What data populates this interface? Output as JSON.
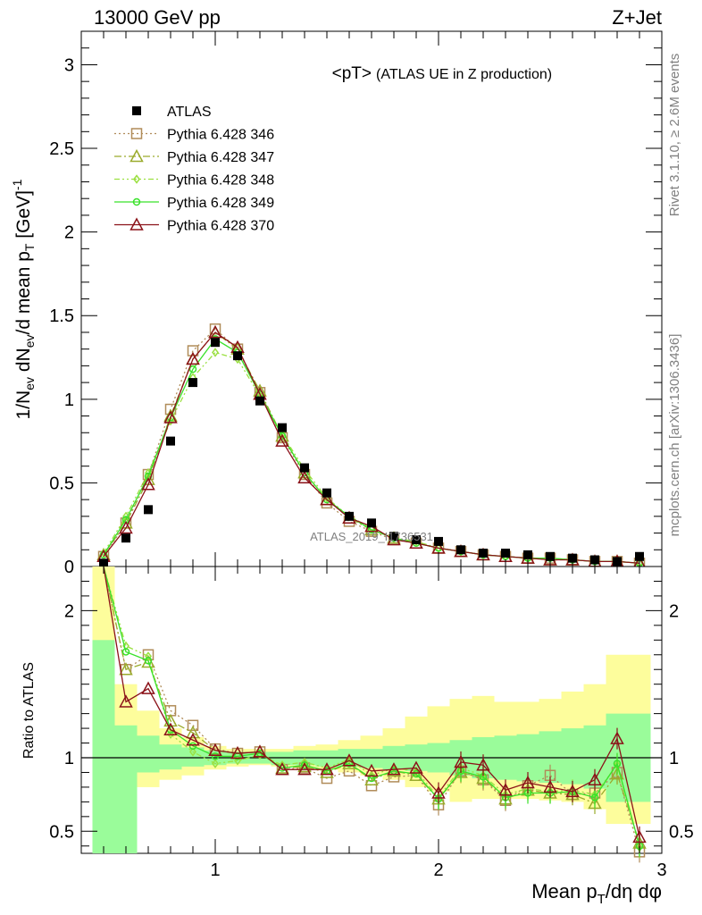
{
  "header": {
    "energy_label": "13000 GeV pp",
    "process_label": "Z+Jet",
    "plot_title": "<pT>",
    "plot_subtitle": "(ATLAS UE in Z production)",
    "rivet_label": "Rivet 3.1.10, ≥ 2.6M events",
    "mcplots_label": "mcplots.cern.ch [arXiv:1306.3436]",
    "watermark": "ATLAS_2019_I1736531"
  },
  "axes": {
    "y_main_label": "1/N_ev dN_ev/d mean p_T [GeV]^-1",
    "y_ratio_label": "Ratio to ATLAS",
    "x_label": "Mean p_T/dη dφ"
  },
  "colors": {
    "atlas": "#000000",
    "p346": "#b08c59",
    "p347": "#9aab2c",
    "p348": "#9be041",
    "p349": "#39e22a",
    "p370": "#8b1219",
    "band_inner": "#9afc9a",
    "band_outer": "#fdfd9c"
  },
  "chart_data": {
    "type": "scatter",
    "x_range": [
      0.4,
      3.0
    ],
    "main_ylim": [
      0,
      3.2
    ],
    "ratio_ylim": [
      0.35,
      2.3
    ],
    "x_ticks": [
      1,
      2,
      3
    ],
    "main_y_ticks": [
      0,
      0.5,
      1,
      1.5,
      2,
      2.5,
      3
    ],
    "ratio_y_ticks": [
      0.5,
      1,
      2
    ],
    "x": [
      0.5,
      0.6,
      0.7,
      0.8,
      0.9,
      1.0,
      1.1,
      1.2,
      1.3,
      1.4,
      1.5,
      1.6,
      1.7,
      1.8,
      1.9,
      2.0,
      2.1,
      2.2,
      2.3,
      2.4,
      2.5,
      2.6,
      2.7,
      2.8,
      2.9
    ],
    "legend": [
      {
        "key": "atlas",
        "label": "ATLAS"
      },
      {
        "key": "p346",
        "label": "Pythia 6.428 346"
      },
      {
        "key": "p347",
        "label": "Pythia 6.428 347"
      },
      {
        "key": "p348",
        "label": "Pythia 6.428 348"
      },
      {
        "key": "p349",
        "label": "Pythia 6.428 349"
      },
      {
        "key": "p370",
        "label": "Pythia 6.428 370"
      }
    ],
    "atlas_values": [
      0.02,
      0.17,
      0.34,
      0.75,
      1.1,
      1.34,
      1.26,
      0.99,
      0.83,
      0.59,
      0.44,
      0.3,
      0.26,
      0.18,
      0.16,
      0.15,
      0.1,
      0.08,
      0.08,
      0.07,
      0.06,
      0.05,
      0.04,
      0.03,
      0.06
    ],
    "series": [
      {
        "key": "p346",
        "marker": "square",
        "dash": "2,3",
        "values": [
          0.06,
          0.26,
          0.55,
          0.94,
          1.29,
          1.42,
          1.3,
          1.04,
          0.77,
          0.55,
          0.38,
          0.27,
          0.21,
          0.16,
          0.14,
          0.11,
          0.09,
          0.07,
          0.06,
          0.05,
          0.05,
          0.04,
          0.03,
          0.03,
          0.02
        ],
        "ratio": [
          3.0,
          1.6,
          1.7,
          1.32,
          1.22,
          1.06,
          1.03,
          1.04,
          0.92,
          0.93,
          0.86,
          0.91,
          0.81,
          0.87,
          0.88,
          0.68,
          0.91,
          0.85,
          0.71,
          0.81,
          0.88,
          0.75,
          0.76,
          0.9,
          0.36
        ]
      },
      {
        "key": "p347",
        "marker": "triangle",
        "dash": "8,3,2,3",
        "values": [
          0.07,
          0.26,
          0.52,
          0.9,
          1.24,
          1.4,
          1.3,
          1.05,
          0.78,
          0.56,
          0.4,
          0.29,
          0.22,
          0.17,
          0.14,
          0.11,
          0.09,
          0.07,
          0.06,
          0.05,
          0.04,
          0.04,
          0.03,
          0.03,
          0.02
        ],
        "ratio": [
          3.0,
          1.6,
          1.65,
          1.25,
          1.17,
          1.05,
          1.03,
          1.04,
          0.93,
          0.94,
          0.9,
          0.96,
          0.85,
          0.91,
          0.88,
          0.72,
          0.9,
          0.86,
          0.72,
          0.78,
          0.76,
          0.75,
          0.69,
          0.89,
          0.42
        ]
      },
      {
        "key": "p348",
        "marker": "diamond",
        "dash": "6,3,2,3,2,3",
        "values": [
          0.08,
          0.3,
          0.56,
          0.87,
          1.13,
          1.28,
          1.24,
          1.02,
          0.79,
          0.58,
          0.41,
          0.3,
          0.23,
          0.17,
          0.15,
          0.11,
          0.09,
          0.07,
          0.06,
          0.05,
          0.05,
          0.04,
          0.03,
          0.03,
          0.02
        ],
        "ratio": [
          3.0,
          1.76,
          1.69,
          1.16,
          1.04,
          0.96,
          0.98,
          1.02,
          0.95,
          0.97,
          0.93,
          0.99,
          0.88,
          0.93,
          0.91,
          0.73,
          0.93,
          0.88,
          0.75,
          0.79,
          0.77,
          0.78,
          0.75,
          0.95,
          0.39
        ]
      },
      {
        "key": "p349",
        "marker": "circle",
        "dash": "",
        "values": [
          0.07,
          0.28,
          0.54,
          0.89,
          1.18,
          1.36,
          1.28,
          1.03,
          0.78,
          0.56,
          0.4,
          0.3,
          0.22,
          0.17,
          0.14,
          0.11,
          0.09,
          0.07,
          0.06,
          0.05,
          0.05,
          0.04,
          0.03,
          0.03,
          0.02
        ],
        "ratio": [
          3.0,
          1.72,
          1.66,
          1.19,
          1.08,
          1.01,
          1.01,
          1.03,
          0.93,
          0.95,
          0.91,
          0.96,
          0.86,
          0.91,
          0.89,
          0.72,
          0.91,
          0.87,
          0.73,
          0.76,
          0.76,
          0.77,
          0.73,
          0.96,
          0.4
        ]
      },
      {
        "key": "p370",
        "marker": "triangle",
        "dash": "",
        "values": [
          0.06,
          0.23,
          0.49,
          0.89,
          1.24,
          1.4,
          1.31,
          1.03,
          0.75,
          0.53,
          0.4,
          0.29,
          0.24,
          0.16,
          0.14,
          0.11,
          0.09,
          0.07,
          0.06,
          0.05,
          0.04,
          0.04,
          0.03,
          0.03,
          0.02
        ],
        "ratio": [
          3.0,
          1.38,
          1.47,
          1.19,
          1.12,
          1.05,
          1.03,
          1.04,
          0.92,
          0.92,
          0.92,
          0.98,
          0.91,
          0.92,
          0.93,
          0.76,
          0.97,
          0.95,
          0.78,
          0.83,
          0.8,
          0.77,
          0.85,
          1.13,
          0.46
        ]
      }
    ],
    "band_edges": [
      0.45,
      0.55,
      0.65,
      0.75,
      0.85,
      0.95,
      1.05,
      1.15,
      1.25,
      1.35,
      1.45,
      1.55,
      1.65,
      1.75,
      1.85,
      1.95,
      2.05,
      2.15,
      2.25,
      2.35,
      2.45,
      2.55,
      2.65,
      2.75,
      2.85,
      2.95
    ],
    "band_inner_low": [
      0.35,
      0.35,
      0.9,
      0.92,
      0.94,
      0.95,
      0.96,
      0.96,
      0.95,
      0.95,
      0.94,
      0.94,
      0.93,
      0.92,
      0.91,
      0.9,
      0.88,
      0.86,
      0.85,
      0.84,
      0.83,
      0.82,
      0.79,
      0.7,
      0.7
    ],
    "band_inner_high": [
      1.8,
      1.22,
      1.15,
      1.09,
      1.07,
      1.05,
      1.04,
      1.04,
      1.04,
      1.05,
      1.05,
      1.06,
      1.06,
      1.08,
      1.09,
      1.1,
      1.12,
      1.14,
      1.15,
      1.16,
      1.18,
      1.2,
      1.22,
      1.3,
      1.3
    ],
    "band_outer_low": [
      0.35,
      0.35,
      0.8,
      0.85,
      0.88,
      0.92,
      0.94,
      0.95,
      0.94,
      0.93,
      0.92,
      0.9,
      0.88,
      0.85,
      0.8,
      0.77,
      0.7,
      0.72,
      0.72,
      0.72,
      0.71,
      0.7,
      0.65,
      0.55,
      0.55
    ],
    "band_outer_high": [
      2.3,
      1.5,
      1.32,
      1.2,
      1.14,
      1.08,
      1.06,
      1.06,
      1.06,
      1.08,
      1.09,
      1.12,
      1.15,
      1.2,
      1.28,
      1.35,
      1.4,
      1.42,
      1.38,
      1.38,
      1.4,
      1.45,
      1.5,
      1.7,
      1.7
    ]
  }
}
